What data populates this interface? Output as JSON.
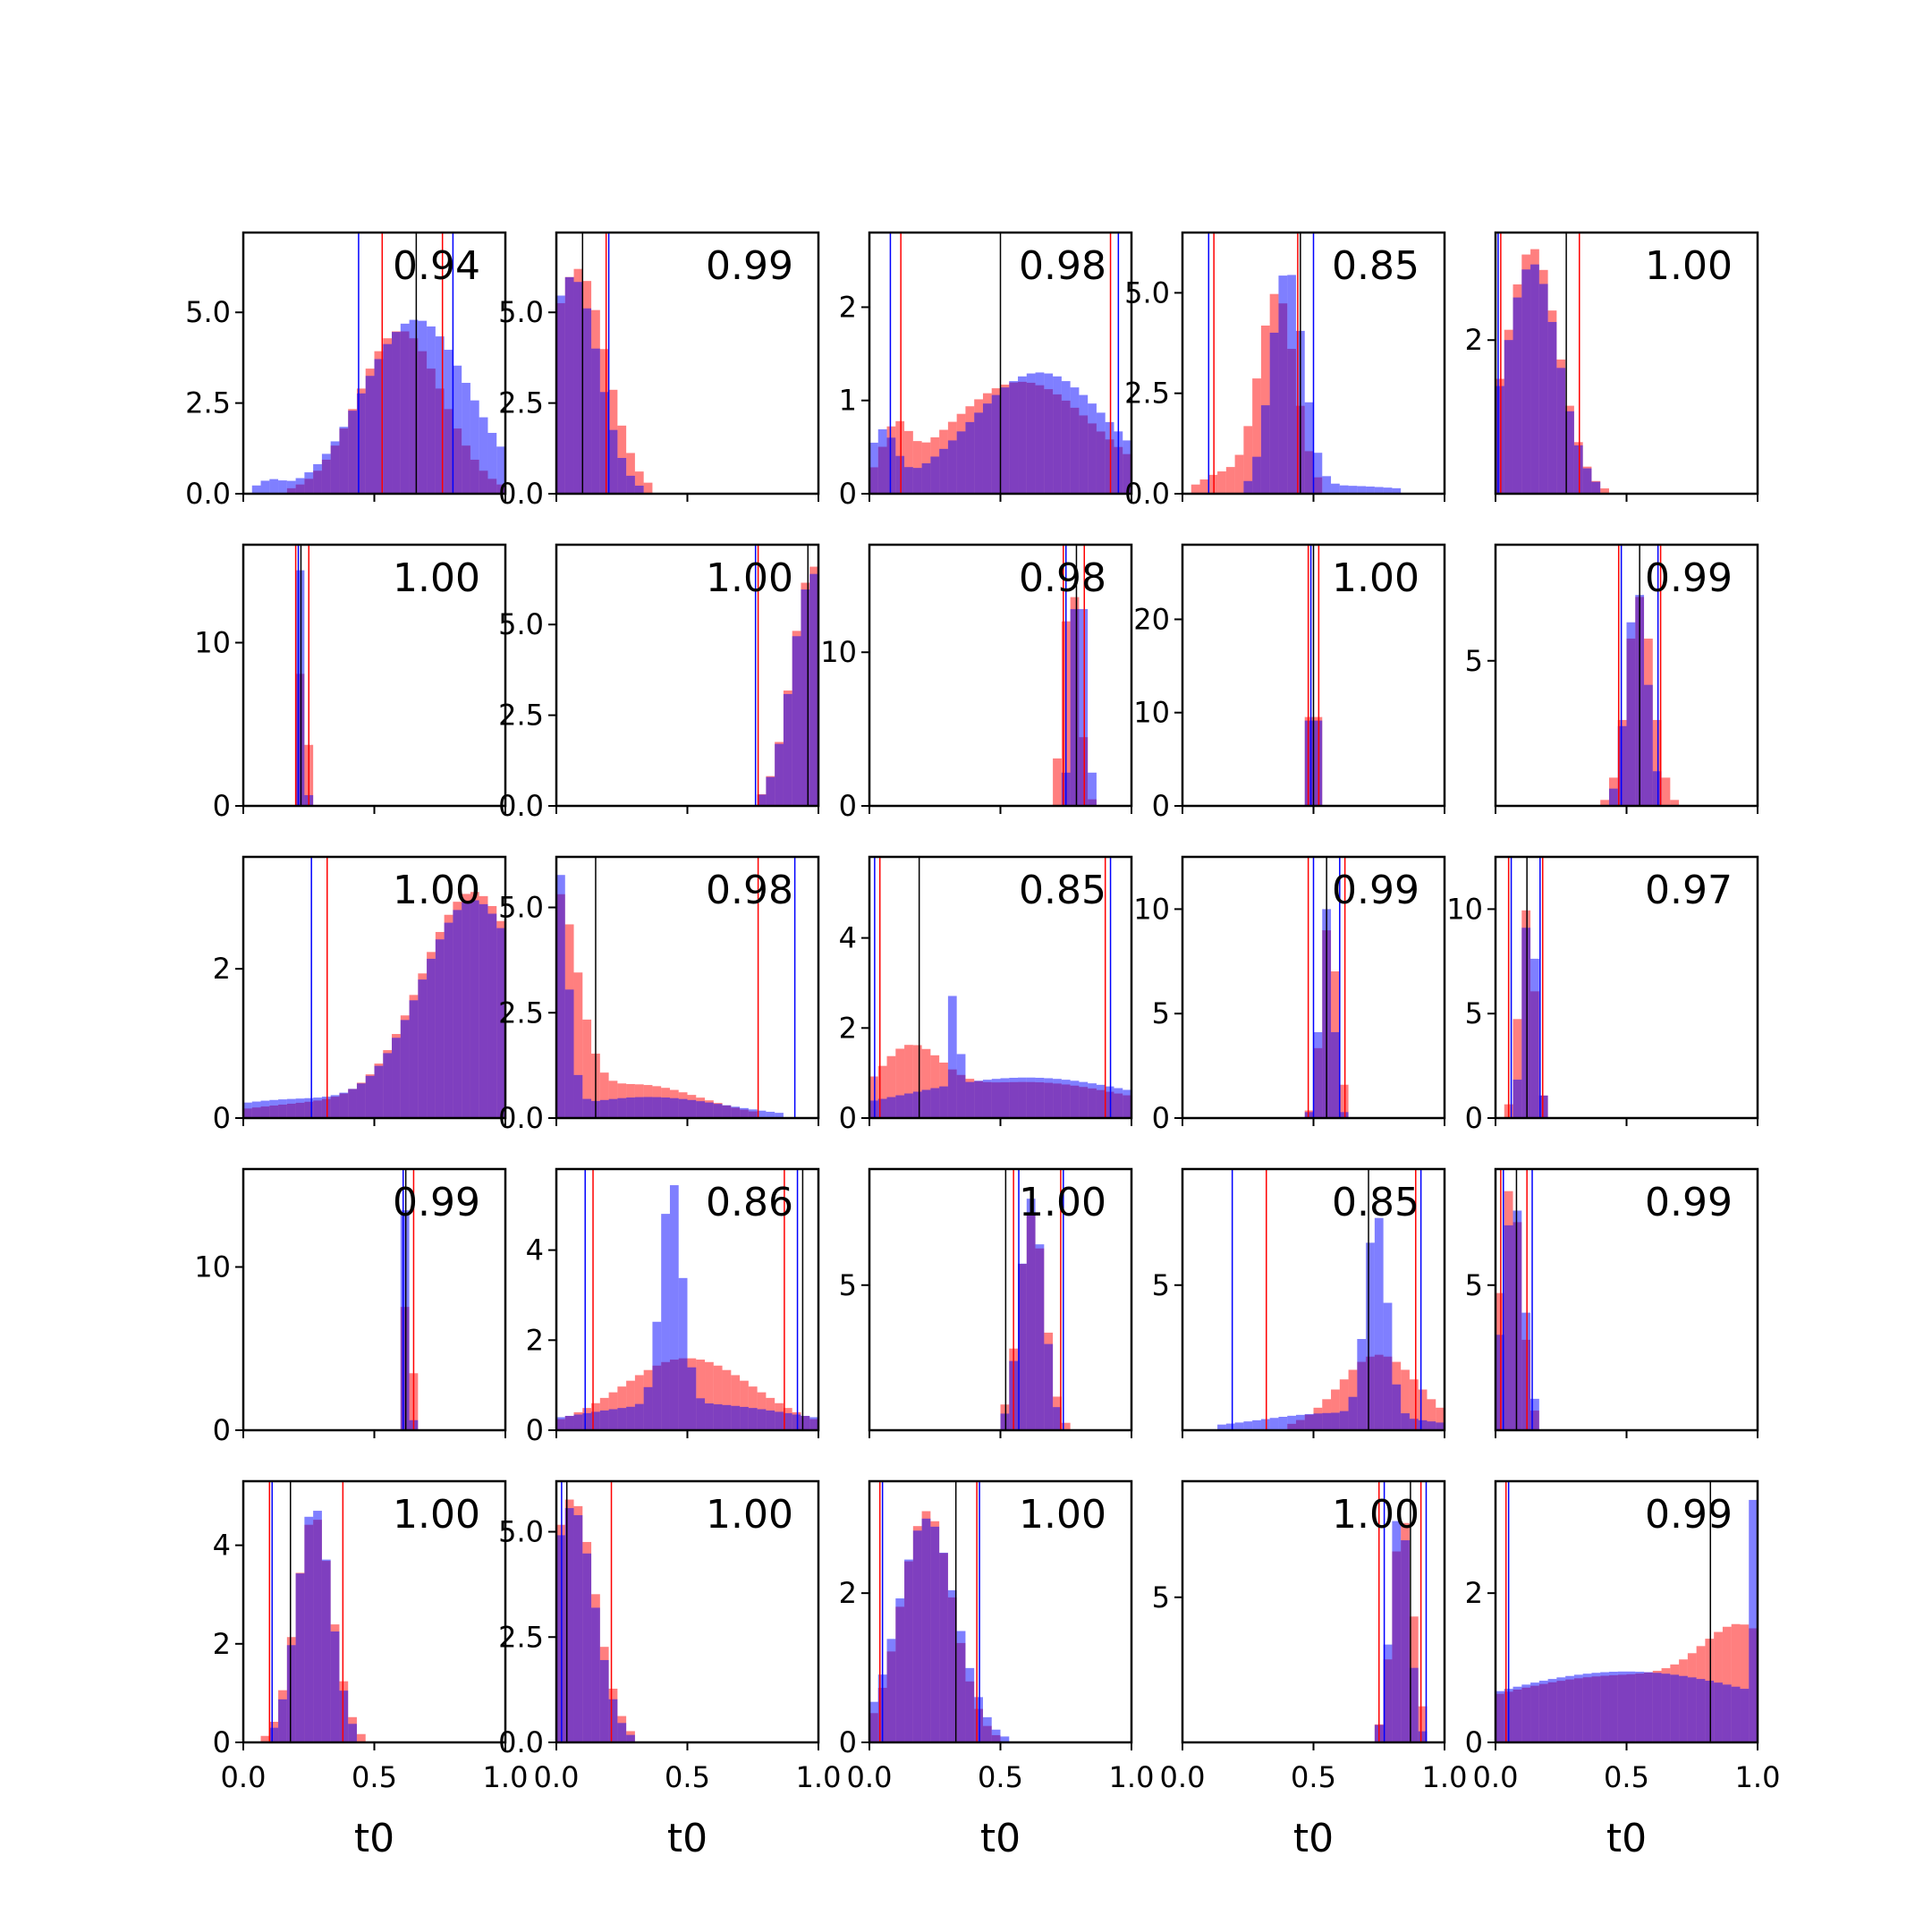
{
  "chart_data": {
    "type": "histogram-grid",
    "rows": 5,
    "cols": 5,
    "xlim": [
      0,
      1
    ],
    "x_ticks": [
      "0.0",
      "0.5",
      "1.0"
    ],
    "xlabel": "t0",
    "colors": {
      "red": "#ff0000",
      "blue": "#0000ff",
      "overlap": "#7f3fbf",
      "black": "#000000"
    },
    "series_opacity": 0.5,
    "panels": [
      {
        "value_label": "0.94",
        "ymax": 7.2,
        "yticks": [
          "0.0",
          "2.5",
          "5.0"
        ],
        "ytick_values": [
          0,
          2.5,
          5
        ],
        "red": [
          [
            0.6,
            0.16,
            4.5
          ]
        ],
        "blue": [
          [
            0.1,
            0.05,
            0.3
          ],
          [
            0.66,
            0.2,
            4.8
          ]
        ],
        "vlines": {
          "red": [
            0.53,
            0.76
          ],
          "blue": [
            0.44,
            0.8
          ],
          "black": [
            0.66
          ]
        }
      },
      {
        "value_label": "0.99",
        "ymax": 7.2,
        "yticks": [
          "0.0",
          "2.5",
          "5.0"
        ],
        "ytick_values": [
          0,
          2.5,
          5
        ],
        "red": [
          [
            0.08,
            0.11,
            6.2
          ]
        ],
        "blue": [
          [
            0.06,
            0.1,
            6.0
          ]
        ],
        "vlines": {
          "red": [
            0.19
          ],
          "blue": [
            0.2
          ],
          "black": [
            0.1
          ]
        }
      },
      {
        "value_label": "0.98",
        "ymax": 2.8,
        "yticks": [
          "0",
          "1",
          "2"
        ],
        "ytick_values": [
          0,
          1,
          2
        ],
        "red": [
          [
            0.1,
            0.05,
            0.5
          ],
          [
            0.58,
            0.28,
            1.2
          ]
        ],
        "blue": [
          [
            0.05,
            0.05,
            0.6
          ],
          [
            0.65,
            0.26,
            1.3
          ]
        ],
        "vlines": {
          "red": [
            0.12,
            0.92
          ],
          "blue": [
            0.08,
            0.95
          ],
          "black": [
            0.5
          ]
        }
      },
      {
        "value_label": "0.85",
        "ymax": 6.5,
        "yticks": [
          "0.0",
          "2.5",
          "5.0"
        ],
        "ytick_values": [
          0,
          2.5,
          5
        ],
        "red": [
          [
            0.36,
            0.07,
            5.0
          ],
          [
            0.15,
            0.08,
            0.5
          ]
        ],
        "blue": [
          [
            0.4,
            0.06,
            5.5
          ],
          [
            0.6,
            0.25,
            0.2
          ]
        ],
        "vlines": {
          "red": [
            0.12,
            0.44
          ],
          "blue": [
            0.1,
            0.5
          ],
          "black": [
            0.45
          ]
        }
      },
      {
        "value_label": "1.00",
        "ymax": 3.4,
        "yticks": [
          "2"
        ],
        "ytick_values": [
          2
        ],
        "red": [
          [
            0.14,
            0.1,
            3.2
          ]
        ],
        "blue": [
          [
            0.14,
            0.1,
            3.0
          ]
        ],
        "vlines": {
          "red": [
            0.02,
            0.32
          ],
          "blue": [
            0.01
          ],
          "black": [
            0.27
          ]
        }
      },
      {
        "value_label": "1.00",
        "ymax": 16,
        "yticks": [
          "0",
          "10"
        ],
        "ytick_values": [
          0,
          10
        ],
        "red": [
          [
            0.23,
            0.012,
            15
          ]
        ],
        "blue": [
          [
            0.22,
            0.012,
            15
          ]
        ],
        "vlines": {
          "red": [
            0.2,
            0.25
          ],
          "blue": [
            0.21
          ],
          "black": [
            0.22
          ]
        }
      },
      {
        "value_label": "1.00",
        "ymax": 7.2,
        "yticks": [
          "0.0",
          "2.5",
          "5.0"
        ],
        "ytick_values": [
          0,
          2.5,
          5
        ],
        "red": [
          [
            0.98,
            0.08,
            6.6
          ]
        ],
        "blue": [
          [
            0.98,
            0.08,
            6.4
          ]
        ],
        "vlines": {
          "red": [
            0.77
          ],
          "blue": [
            0.76
          ],
          "black": [
            0.96
          ]
        }
      },
      {
        "value_label": "0.98",
        "ymax": 17,
        "yticks": [
          "0",
          "10"
        ],
        "ytick_values": [
          0,
          10
        ],
        "red": [
          [
            0.77,
            0.03,
            15
          ]
        ],
        "blue": [
          [
            0.8,
            0.025,
            16
          ]
        ],
        "vlines": {
          "red": [
            0.74,
            0.82
          ],
          "blue": [
            0.75
          ],
          "black": [
            0.79
          ]
        }
      },
      {
        "value_label": "1.00",
        "ymax": 28,
        "yticks": [
          "0",
          "10",
          "20"
        ],
        "ytick_values": [
          0,
          10,
          20
        ],
        "red": [
          [
            0.5,
            0.012,
            25
          ]
        ],
        "blue": [
          [
            0.5,
            0.012,
            24
          ]
        ],
        "vlines": {
          "red": [
            0.48,
            0.52
          ],
          "blue": [
            0.49
          ],
          "black": [
            0.5
          ]
        }
      },
      {
        "value_label": "0.99",
        "ymax": 9,
        "yticks": [
          "5"
        ],
        "ytick_values": [
          5
        ],
        "red": [
          [
            0.55,
            0.05,
            7.2
          ]
        ],
        "blue": [
          [
            0.54,
            0.04,
            7.5
          ]
        ],
        "vlines": {
          "red": [
            0.47,
            0.63
          ],
          "blue": [
            0.48,
            0.62
          ],
          "black": [
            0.55
          ]
        }
      },
      {
        "value_label": "1.00",
        "ymax": 3.5,
        "yticks": [
          "0",
          "2"
        ],
        "ytick_values": [
          0,
          2
        ],
        "red": [
          [
            0.88,
            0.2,
            3.0
          ],
          [
            0.3,
            0.3,
            0.2
          ]
        ],
        "blue": [
          [
            0.88,
            0.2,
            2.9
          ],
          [
            0.2,
            0.3,
            0.25
          ]
        ],
        "vlines": {
          "red": [
            0.32
          ],
          "blue": [
            0.26
          ],
          "black": []
        }
      },
      {
        "value_label": "0.98",
        "ymax": 6.2,
        "yticks": [
          "0.0",
          "2.5",
          "5.0"
        ],
        "ytick_values": [
          0,
          2.5,
          5
        ],
        "red": [
          [
            0.0,
            0.08,
            5.0
          ],
          [
            0.3,
            0.25,
            0.8
          ]
        ],
        "blue": [
          [
            0.0,
            0.04,
            6.0
          ],
          [
            0.35,
            0.3,
            0.5
          ]
        ],
        "vlines": {
          "red": [
            0.77
          ],
          "blue": [
            0.91
          ],
          "black": [
            0.15
          ]
        }
      },
      {
        "value_label": "0.85",
        "ymax": 5.8,
        "yticks": [
          "0",
          "2",
          "4"
        ],
        "ytick_values": [
          0,
          2,
          4
        ],
        "red": [
          [
            0.15,
            0.12,
            1.2
          ],
          [
            0.6,
            0.4,
            0.8
          ]
        ],
        "blue": [
          [
            0.33,
            0.01,
            4.8
          ],
          [
            0.6,
            0.45,
            0.9
          ]
        ],
        "vlines": {
          "red": [
            0.04,
            0.9
          ],
          "blue": [
            0.02,
            0.92
          ],
          "black": [
            0.19
          ]
        }
      },
      {
        "value_label": "0.99",
        "ymax": 12.5,
        "yticks": [
          "0",
          "5",
          "10"
        ],
        "ytick_values": [
          0,
          5,
          10
        ],
        "red": [
          [
            0.56,
            0.03,
            9.5
          ]
        ],
        "blue": [
          [
            0.55,
            0.025,
            10
          ]
        ],
        "vlines": {
          "red": [
            0.48,
            0.62
          ],
          "blue": [
            0.5,
            0.6
          ],
          "black": [
            0.55
          ]
        }
      },
      {
        "value_label": "0.97",
        "ymax": 12.5,
        "yticks": [
          "0",
          "5",
          "10"
        ],
        "ytick_values": [
          0,
          5,
          10
        ],
        "red": [
          [
            0.12,
            0.03,
            10
          ]
        ],
        "blue": [
          [
            0.13,
            0.025,
            10.5
          ]
        ],
        "vlines": {
          "red": [
            0.05,
            0.18
          ],
          "blue": [
            0.06,
            0.17
          ],
          "black": [
            0.12
          ]
        }
      },
      {
        "value_label": "0.99",
        "ymax": 16,
        "yticks": [
          "0",
          "10"
        ],
        "ytick_values": [
          0,
          10
        ],
        "red": [
          [
            0.63,
            0.012,
            14
          ]
        ],
        "blue": [
          [
            0.62,
            0.012,
            14
          ]
        ],
        "vlines": {
          "red": [
            0.61,
            0.65
          ],
          "blue": [
            0.61
          ],
          "black": [
            0.62
          ]
        }
      },
      {
        "value_label": "0.86",
        "ymax": 5.8,
        "yticks": [
          "0",
          "2",
          "4"
        ],
        "ytick_values": [
          0,
          2,
          4
        ],
        "red": [
          [
            0.5,
            0.25,
            1.6
          ]
        ],
        "blue": [
          [
            0.44,
            0.04,
            5.0
          ],
          [
            0.5,
            0.4,
            0.6
          ]
        ],
        "vlines": {
          "red": [
            0.14,
            0.87
          ],
          "blue": [
            0.11,
            0.92
          ],
          "black": [
            0.94
          ]
        }
      },
      {
        "value_label": "1.00",
        "ymax": 9,
        "yticks": [
          "5"
        ],
        "ytick_values": [
          5
        ],
        "red": [
          [
            0.62,
            0.05,
            7.5
          ]
        ],
        "blue": [
          [
            0.62,
            0.045,
            8.0
          ]
        ],
        "vlines": {
          "red": [
            0.55,
            0.73
          ],
          "blue": [
            0.57,
            0.74
          ],
          "black": [
            0.52
          ]
        }
      },
      {
        "value_label": "0.85",
        "ymax": 9,
        "yticks": [
          "5"
        ],
        "ytick_values": [
          5
        ],
        "red": [
          [
            0.75,
            0.15,
            2.6
          ]
        ],
        "blue": [
          [
            0.74,
            0.04,
            7.0
          ],
          [
            0.6,
            0.3,
            0.6
          ]
        ],
        "vlines": {
          "red": [
            0.32,
            0.89
          ],
          "blue": [
            0.19,
            0.91
          ],
          "black": [
            0.71
          ]
        }
      },
      {
        "value_label": "0.99",
        "ymax": 9,
        "yticks": [
          "5"
        ],
        "ytick_values": [
          5
        ],
        "red": [
          [
            0.06,
            0.04,
            8.5
          ]
        ],
        "blue": [
          [
            0.07,
            0.04,
            8.0
          ]
        ],
        "vlines": {
          "red": [
            0.02,
            0.12
          ],
          "blue": [
            0.03,
            0.14
          ],
          "black": [
            0.08
          ]
        }
      },
      {
        "value_label": "1.00",
        "ymax": 5.3,
        "yticks": [
          "0",
          "2",
          "4"
        ],
        "ytick_values": [
          0,
          2,
          4
        ],
        "red": [
          [
            0.27,
            0.07,
            4.6
          ]
        ],
        "blue": [
          [
            0.27,
            0.065,
            4.8
          ]
        ],
        "vlines": {
          "red": [
            0.1,
            0.38
          ],
          "blue": [
            0.11
          ],
          "black": [
            0.18
          ]
        }
      },
      {
        "value_label": "1.00",
        "ymax": 6.2,
        "yticks": [
          "0.0",
          "2.5",
          "5.0"
        ],
        "ytick_values": [
          0,
          2.5,
          5
        ],
        "red": [
          [
            0.06,
            0.09,
            5.8
          ]
        ],
        "blue": [
          [
            0.06,
            0.085,
            5.6
          ]
        ],
        "vlines": {
          "red": [
            0.21
          ],
          "blue": [
            0.02
          ],
          "black": [
            0.04
          ]
        }
      },
      {
        "value_label": "1.00",
        "ymax": 3.5,
        "yticks": [
          "0",
          "2"
        ],
        "ytick_values": [
          0,
          2
        ],
        "red": [
          [
            0.22,
            0.1,
            3.1
          ]
        ],
        "blue": [
          [
            0.22,
            0.11,
            3.0
          ]
        ],
        "vlines": {
          "red": [
            0.04,
            0.41
          ],
          "blue": [
            0.05,
            0.42
          ],
          "black": [
            0.33
          ]
        }
      },
      {
        "value_label": "1.00",
        "ymax": 9,
        "yticks": [
          "5"
        ],
        "ytick_values": [
          5
        ],
        "red": [
          [
            0.84,
            0.04,
            7.8
          ]
        ],
        "blue": [
          [
            0.83,
            0.035,
            8.2
          ]
        ],
        "vlines": {
          "red": [
            0.75,
            0.91
          ],
          "blue": [
            0.77,
            0.93
          ],
          "black": [
            0.87
          ]
        }
      },
      {
        "value_label": "0.99",
        "ymax": 3.5,
        "yticks": [
          "0",
          "2"
        ],
        "ytick_values": [
          0,
          2
        ],
        "red": [
          [
            0.95,
            0.15,
            0.9
          ],
          [
            0.5,
            0.6,
            0.9
          ]
        ],
        "blue": [
          [
            0.99,
            0.01,
            3.2
          ],
          [
            0.5,
            0.6,
            0.95
          ]
        ],
        "vlines": {
          "red": [
            0.04
          ],
          "blue": [
            0.05
          ],
          "black": [
            0.82
          ]
        }
      }
    ]
  }
}
